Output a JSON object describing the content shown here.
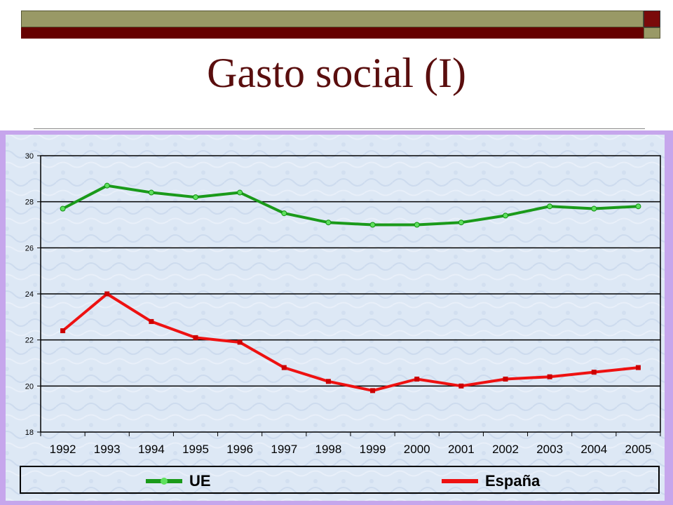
{
  "slide": {
    "title": "Gasto social (I)"
  },
  "colors": {
    "olive": "#999966",
    "maroon": "#660000",
    "frame": "#c6a6ec",
    "plot_bg": "#dfeaf6",
    "ue": "#1a9a1a",
    "espana": "#ee1111"
  },
  "chart_data": {
    "type": "line",
    "title": "",
    "xlabel": "",
    "ylabel": "",
    "categories": [
      "1992",
      "1993",
      "1994",
      "1995",
      "1996",
      "1997",
      "1998",
      "1999",
      "2000",
      "2001",
      "2002",
      "2003",
      "2004",
      "2005"
    ],
    "ylim": [
      18,
      30
    ],
    "yticks": [
      18,
      20,
      22,
      24,
      26,
      28,
      30
    ],
    "grid": true,
    "legend_position": "bottom",
    "series": [
      {
        "name": "UE",
        "color": "#1a9a1a",
        "marker": "dot",
        "values": [
          27.7,
          28.7,
          28.4,
          28.2,
          28.4,
          27.5,
          27.1,
          27.0,
          27.0,
          27.1,
          27.4,
          27.8,
          27.7,
          27.8
        ]
      },
      {
        "name": "España",
        "color": "#ee1111",
        "marker": "square",
        "values": [
          22.4,
          24.0,
          22.8,
          22.1,
          21.9,
          20.8,
          20.2,
          19.8,
          20.3,
          20.0,
          20.3,
          20.4,
          20.6,
          20.8
        ]
      }
    ]
  }
}
